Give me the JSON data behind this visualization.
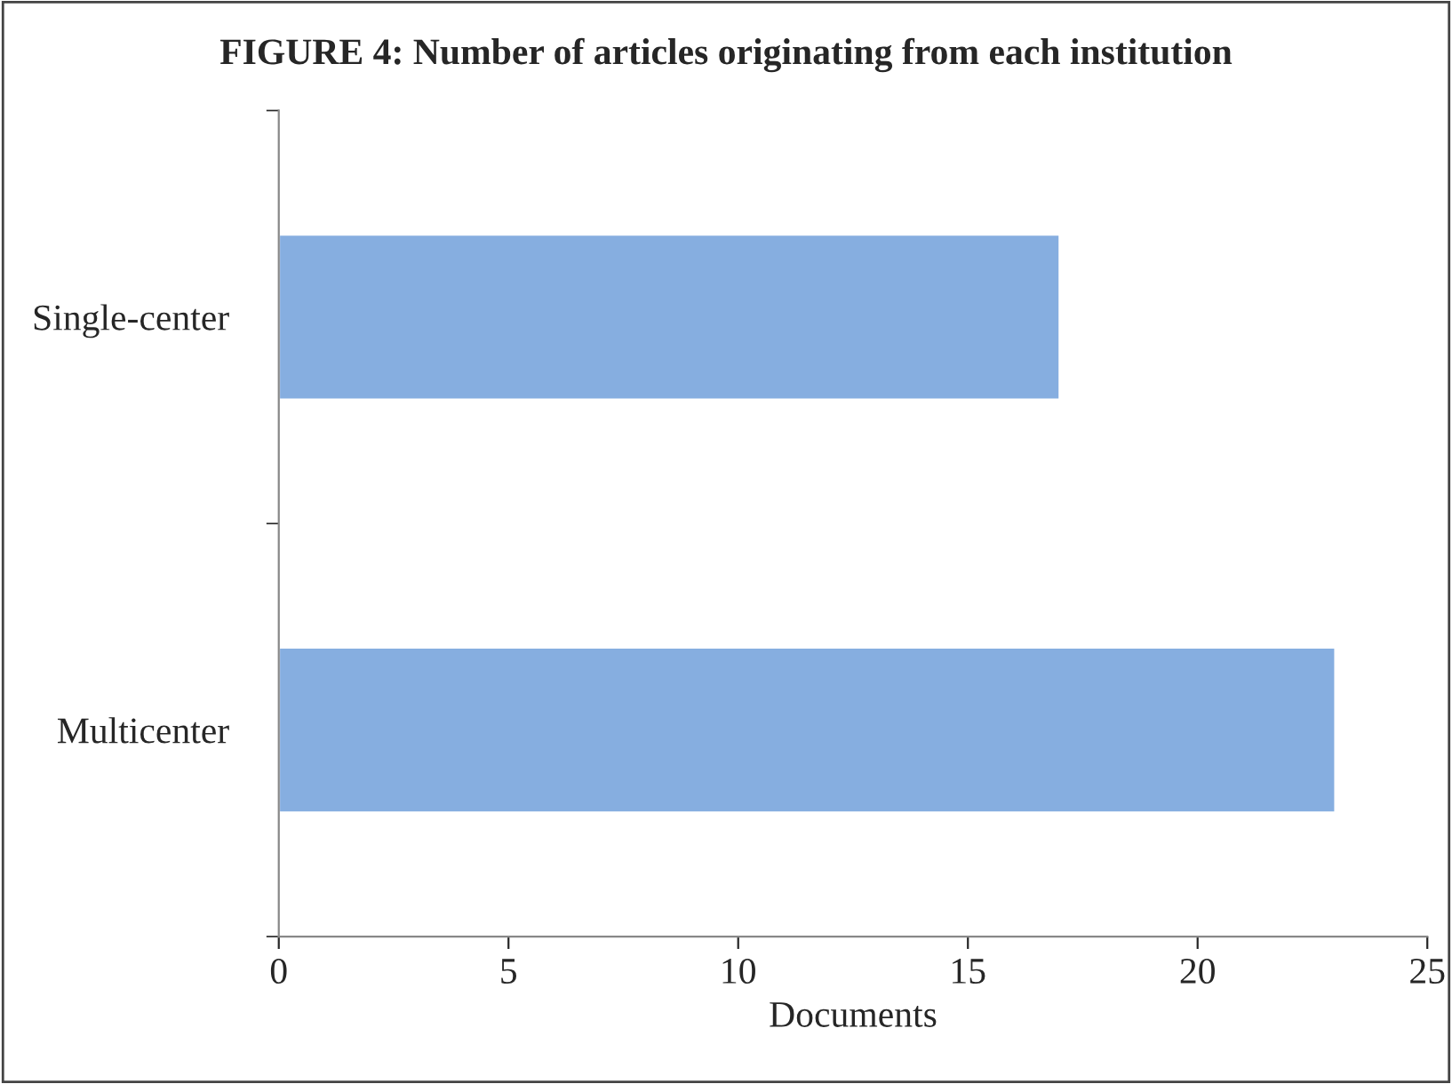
{
  "chart_data": {
    "type": "bar",
    "orientation": "horizontal",
    "title": "FIGURE 4: Number of articles originating from each institution",
    "xlabel": "Documents",
    "categories": [
      "Single-center",
      "Multicenter"
    ],
    "series": [
      {
        "color": "#86aee0",
        "values": [
          17,
          23
        ]
      }
    ],
    "xlim": [
      0,
      25
    ],
    "xticks": [
      0,
      5,
      10,
      15,
      20,
      25
    ],
    "grid": false,
    "legend": false
  }
}
